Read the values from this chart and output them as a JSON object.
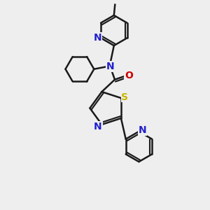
{
  "bg_color": "#eeeeee",
  "bond_color": "#1a1a1a",
  "N_color": "#2020cc",
  "O_color": "#cc0000",
  "S_color": "#c8b400",
  "lw": 1.8,
  "lw2": 1.5,
  "dbo": 0.055,
  "fs": 9.5,
  "xlim": [
    0,
    10
  ],
  "ylim": [
    0,
    10
  ]
}
